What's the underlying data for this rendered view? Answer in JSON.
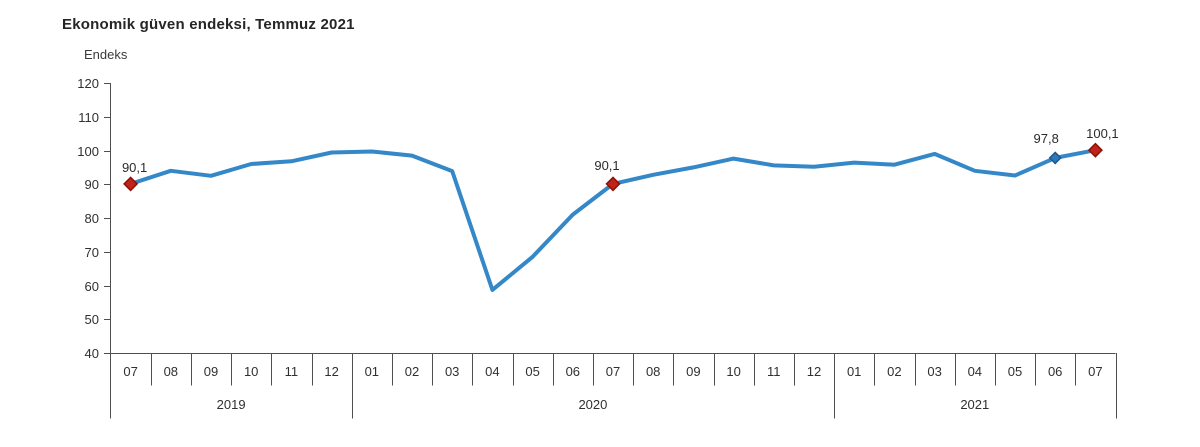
{
  "header": {
    "title": "Ekonomik güven endeksi, Temmuz 2021",
    "axis_unit_label": "Endeks"
  },
  "colors": {
    "line": "#3488C8",
    "marker_highlight_fill": "#C02418",
    "marker_highlight_stroke": "#8A1208",
    "marker_regular_fill": "#2E78B8",
    "marker_regular_stroke": "#1E578C",
    "axis": "#4f4f4f",
    "text": "#303030"
  },
  "chart_data": {
    "type": "line",
    "title": "Ekonomik güven endeksi, Temmuz 2021",
    "ylabel": "Endeks",
    "xlabel": "",
    "grid": false,
    "legend": "none",
    "ylim": [
      40,
      120
    ],
    "yticks": [
      120,
      110,
      100,
      90,
      80,
      70,
      60,
      50,
      40
    ],
    "x": [
      "07",
      "08",
      "09",
      "10",
      "11",
      "12",
      "01",
      "02",
      "03",
      "04",
      "05",
      "06",
      "07",
      "08",
      "09",
      "10",
      "11",
      "12",
      "01",
      "02",
      "03",
      "04",
      "05",
      "06",
      "07"
    ],
    "year_groups": [
      {
        "label": "2019",
        "span": 6
      },
      {
        "label": "2020",
        "span": 12
      },
      {
        "label": "2021",
        "span": 7
      }
    ],
    "series": [
      {
        "name": "Ekonomik güven endeksi",
        "values": [
          90.1,
          94.0,
          92.5,
          96.0,
          96.8,
          99.4,
          99.7,
          98.5,
          93.9,
          58.7,
          68.5,
          81.0,
          90.1,
          92.8,
          95.0,
          97.6,
          95.6,
          95.2,
          96.4,
          95.8,
          99.0,
          94.0,
          92.6,
          97.8,
          100.1
        ]
      }
    ],
    "annotations": [
      {
        "index": 0,
        "label": "90,1",
        "marker": "highlight"
      },
      {
        "index": 12,
        "label": "90,1",
        "marker": "highlight"
      },
      {
        "index": 23,
        "label": "97,8",
        "marker": "regular"
      },
      {
        "index": 24,
        "label": "100,1",
        "marker": "highlight"
      }
    ]
  }
}
